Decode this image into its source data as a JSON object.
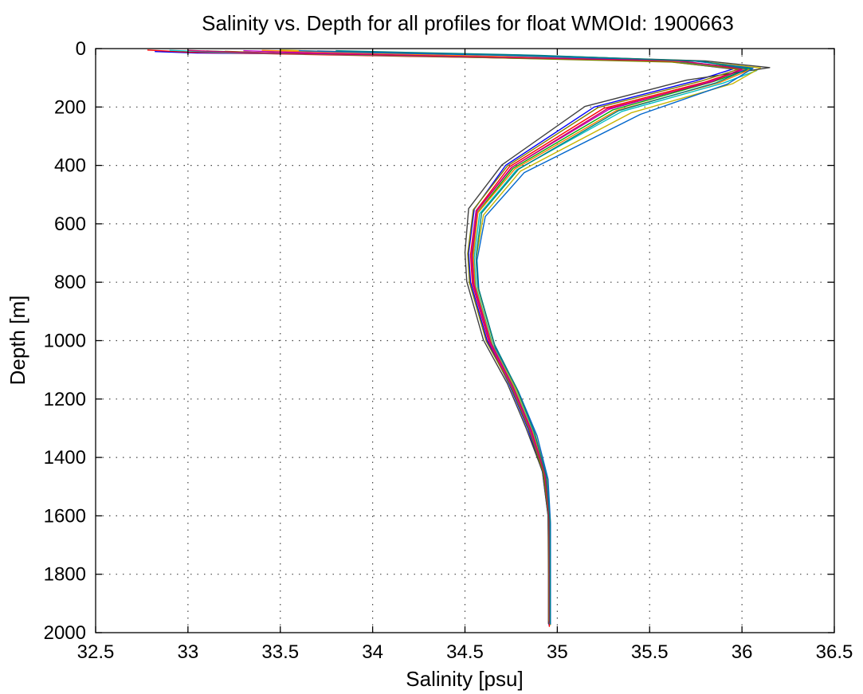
{
  "chart_data": {
    "type": "line",
    "title": "Salinity vs. Depth for all profiles for float WMOId: 1900663",
    "xlabel": "Salinity [psu]",
    "ylabel": "Depth [m]",
    "xlim": [
      32.5,
      36.5
    ],
    "ylim": [
      0,
      2000
    ],
    "y_reversed": true,
    "grid": true,
    "xticks": [
      32.5,
      33,
      33.5,
      34,
      34.5,
      35,
      35.5,
      36,
      36.5
    ],
    "xtick_labels": [
      "32.5",
      "33",
      "33.5",
      "34",
      "34.5",
      "35",
      "35.5",
      "36",
      "36.5"
    ],
    "yticks": [
      0,
      200,
      400,
      600,
      800,
      1000,
      1200,
      1400,
      1600,
      1800,
      2000
    ],
    "ytick_labels": [
      "0",
      "200",
      "400",
      "600",
      "800",
      "1000",
      "1200",
      "1400",
      "1600",
      "1800",
      "2000"
    ],
    "series_colors": [
      "#0000ff",
      "#ff0000",
      "#00aa00",
      "#00bfbf",
      "#bf00bf",
      "#c8b400",
      "#404040",
      "#ff8000",
      "#0066cc",
      "#7f7f00",
      "#cc0066",
      "#008080"
    ],
    "series": [
      {
        "x": [
          32.82,
          33.05,
          33.9,
          35.55,
          35.95,
          35.75,
          35.2,
          34.72,
          34.55,
          34.52,
          34.53,
          34.62,
          34.74,
          34.84,
          34.92,
          34.95,
          34.955,
          34.955
        ],
        "y": [
          10,
          15,
          20,
          40,
          70,
          110,
          200,
          400,
          550,
          700,
          800,
          1000,
          1150,
          1300,
          1450,
          1600,
          1800,
          1975
        ]
      },
      {
        "x": [
          32.78,
          33.0,
          33.8,
          35.6,
          36.0,
          35.8,
          35.25,
          34.74,
          34.56,
          34.53,
          34.54,
          34.63,
          34.75,
          34.85,
          34.93,
          34.955,
          34.957,
          34.957
        ],
        "y": [
          5,
          12,
          22,
          42,
          72,
          115,
          205,
          405,
          555,
          705,
          805,
          1005,
          1155,
          1305,
          1455,
          1605,
          1805,
          1980
        ]
      },
      {
        "x": [
          33.1,
          33.4,
          34.2,
          35.65,
          36.05,
          35.85,
          35.3,
          34.76,
          34.57,
          34.54,
          34.55,
          34.64,
          34.76,
          34.86,
          34.935,
          34.955,
          34.956,
          34.956
        ],
        "y": [
          8,
          14,
          24,
          44,
          68,
          112,
          210,
          410,
          560,
          710,
          810,
          1010,
          1160,
          1310,
          1460,
          1610,
          1810,
          1960
        ]
      },
      {
        "x": [
          32.9,
          33.2,
          34.0,
          35.58,
          36.08,
          35.9,
          35.35,
          34.78,
          34.58,
          34.55,
          34.56,
          34.65,
          34.77,
          34.87,
          34.94,
          34.96,
          34.96,
          34.96
        ],
        "y": [
          6,
          13,
          23,
          43,
          75,
          118,
          215,
          415,
          565,
          715,
          815,
          1015,
          1165,
          1315,
          1465,
          1615,
          1815,
          1970
        ]
      },
      {
        "x": [
          33.3,
          33.7,
          34.4,
          35.7,
          36.02,
          35.82,
          35.28,
          34.75,
          34.56,
          34.535,
          34.545,
          34.635,
          34.755,
          34.855,
          34.93,
          34.952,
          34.953,
          34.953
        ],
        "y": [
          7,
          15,
          25,
          45,
          70,
          114,
          208,
          408,
          558,
          708,
          808,
          1008,
          1158,
          1308,
          1458,
          1608,
          1808,
          1965
        ]
      },
      {
        "x": [
          33.5,
          33.9,
          34.6,
          35.72,
          36.1,
          35.95,
          35.4,
          34.8,
          34.6,
          34.56,
          34.57,
          34.66,
          34.78,
          34.88,
          34.945,
          34.962,
          34.962,
          34.962
        ],
        "y": [
          5,
          12,
          21,
          41,
          66,
          120,
          220,
          420,
          570,
          720,
          820,
          1020,
          1170,
          1320,
          1470,
          1620,
          1820,
          1975
        ]
      },
      {
        "x": [
          33.7,
          34.1,
          34.8,
          35.8,
          36.15,
          35.7,
          35.15,
          34.7,
          34.52,
          34.5,
          34.51,
          34.6,
          34.73,
          34.83,
          34.92,
          34.95,
          34.952,
          34.952
        ],
        "y": [
          8,
          14,
          22,
          42,
          65,
          108,
          198,
          398,
          548,
          698,
          798,
          998,
          1148,
          1298,
          1448,
          1598,
          1798,
          1970
        ]
      },
      {
        "x": [
          33.4,
          33.8,
          34.5,
          35.68,
          36.04,
          35.88,
          35.32,
          34.77,
          34.57,
          34.545,
          34.555,
          34.645,
          34.765,
          34.865,
          34.938,
          34.958,
          34.958,
          34.958
        ],
        "y": [
          6,
          13,
          24,
          44,
          73,
          116,
          212,
          412,
          562,
          712,
          812,
          1012,
          1162,
          1312,
          1462,
          1612,
          1812,
          1968
        ]
      },
      {
        "x": [
          33.6,
          34.0,
          34.7,
          35.75,
          36.06,
          35.92,
          35.45,
          34.82,
          34.61,
          34.565,
          34.575,
          34.665,
          34.79,
          34.89,
          34.95,
          34.963,
          34.963,
          34.963
        ],
        "y": [
          7,
          14,
          23,
          43,
          67,
          122,
          225,
          425,
          575,
          725,
          825,
          1025,
          1175,
          1325,
          1475,
          1625,
          1825,
          1972
        ]
      },
      {
        "x": [
          33.2,
          33.5,
          34.3,
          35.62,
          35.98,
          35.78,
          35.22,
          34.73,
          34.545,
          34.515,
          34.525,
          34.615,
          34.745,
          34.845,
          34.925,
          34.953,
          34.954,
          34.954
        ],
        "y": [
          9,
          16,
          26,
          46,
          71,
          111,
          202,
          402,
          552,
          702,
          802,
          1002,
          1152,
          1302,
          1452,
          1602,
          1802,
          1962
        ]
      },
      {
        "x": [
          33.0,
          33.3,
          34.1,
          35.66,
          36.0,
          35.84,
          35.27,
          34.755,
          34.565,
          34.538,
          34.548,
          34.638,
          34.758,
          34.858,
          34.933,
          34.956,
          34.957,
          34.957
        ],
        "y": [
          6,
          13,
          22,
          42,
          69,
          113,
          206,
          406,
          556,
          706,
          806,
          1006,
          1156,
          1306,
          1456,
          1606,
          1806,
          1967
        ]
      },
      {
        "x": [
          33.8,
          34.2,
          34.9,
          35.78,
          36.03,
          35.86,
          35.33,
          34.79,
          34.59,
          34.56,
          34.57,
          34.66,
          34.78,
          34.875,
          34.94,
          34.96,
          34.961,
          34.961
        ],
        "y": [
          7,
          13,
          23,
          43,
          70,
          117,
          213,
          413,
          563,
          713,
          813,
          1013,
          1163,
          1313,
          1463,
          1613,
          1813,
          1969
        ]
      }
    ]
  }
}
